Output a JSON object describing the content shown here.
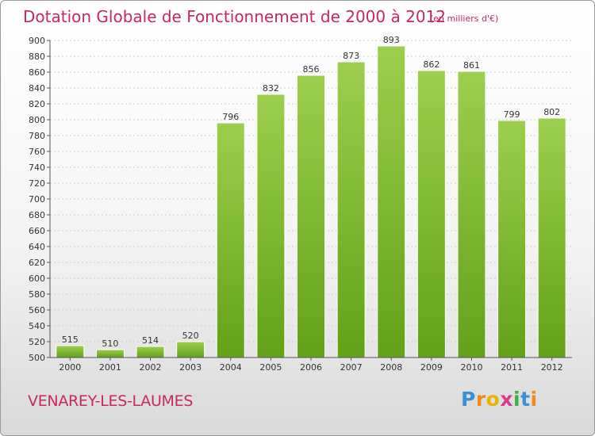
{
  "header": {
    "title": "Dotation Globale de Fonctionnement de 2000 à 2012",
    "subtitle": "(en milliers d'€)"
  },
  "footer": {
    "city": "VENAREY-LES-LAUMES",
    "logo": {
      "p": "P",
      "r": "r",
      "o": "o",
      "x": "x",
      "i": "i",
      "t": "t",
      "i2": "i"
    }
  },
  "colors": {
    "bar_top": "#9ccf4d",
    "bar_bottom": "#63a119",
    "title": "#c8285a",
    "grid": "#cfcfcf"
  },
  "chart_data": {
    "type": "bar",
    "title": "Dotation Globale de Fonctionnement de 2000 à 2012",
    "subtitle": "(en milliers d'€)",
    "xlabel": "",
    "ylabel": "",
    "categories": [
      "2000",
      "2001",
      "2002",
      "2003",
      "2004",
      "2005",
      "2006",
      "2007",
      "2008",
      "2009",
      "2010",
      "2011",
      "2012"
    ],
    "values": [
      515,
      510,
      514,
      520,
      796,
      832,
      856,
      873,
      893,
      862,
      861,
      799,
      802
    ],
    "ylim": [
      500,
      900
    ],
    "yticks": [
      500,
      520,
      540,
      560,
      580,
      600,
      620,
      640,
      660,
      680,
      700,
      720,
      740,
      760,
      780,
      800,
      820,
      840,
      860,
      880,
      900
    ],
    "grid": true
  }
}
